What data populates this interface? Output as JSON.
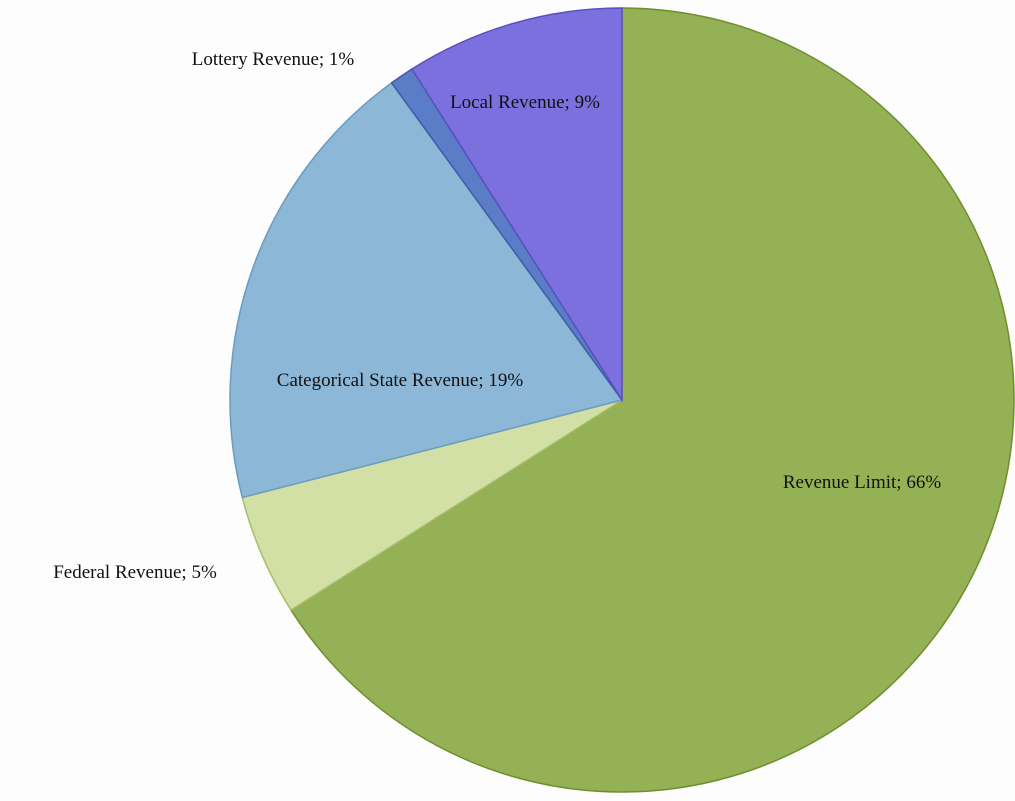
{
  "chart_data": {
    "type": "pie",
    "values": [
      66,
      5,
      19,
      1,
      9
    ],
    "value_labels": [
      "Revenue Limit; 66%",
      "Federal Revenue; 5%",
      "Categorical State Revenue; 19%",
      "Lottery Revenue; 1%",
      "Local Revenue; 9%"
    ],
    "colors": [
      "#94b255",
      "#d2dfa5",
      "#8db7d6",
      "#5b7cc6",
      "#7b70dd"
    ]
  }
}
